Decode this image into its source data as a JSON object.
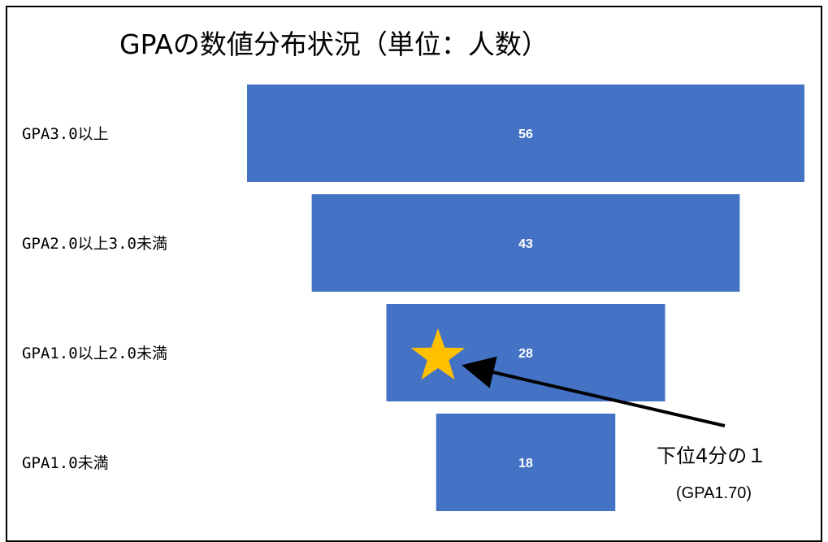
{
  "chart_data": {
    "type": "bar",
    "title": "GPAの数値分布状況（単位：人数）",
    "categories": [
      "GPA3.0以上",
      "GPA2.0以上3.0未満",
      "GPA1.0以上2.0未満",
      "GPA1.0未満"
    ],
    "values": [
      56,
      43,
      28,
      18
    ],
    "bar_color": "#4472C4",
    "value_label_color": "#ffffff",
    "grid": false,
    "legend": "none",
    "annotation": {
      "text": "下位4分の１",
      "subtext": "(GPA1.70)",
      "marker": "star-icon",
      "marker_color": "#FFC000",
      "target_category": "GPA1.0以上2.0未満"
    }
  }
}
